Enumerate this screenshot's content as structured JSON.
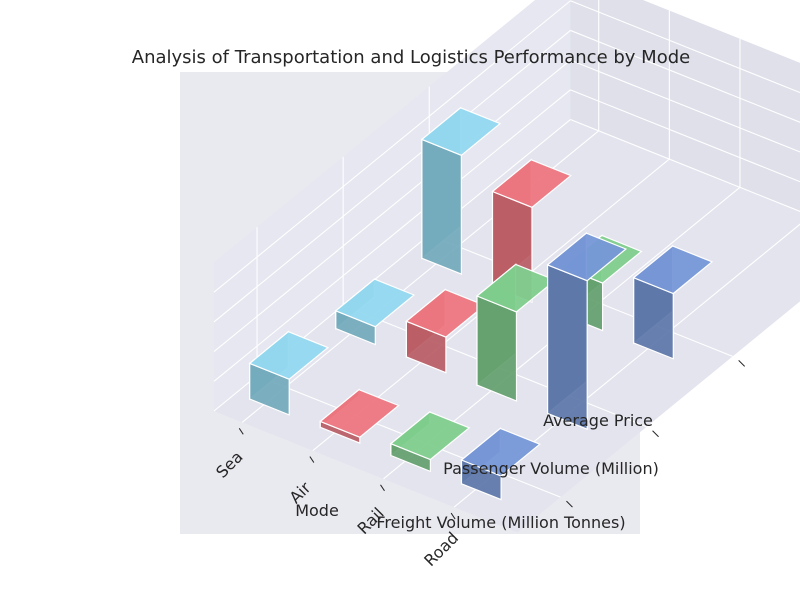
{
  "chart_data": {
    "type": "bar3d",
    "title": "Analysis of Transportation and Logistics Performance by Mode",
    "xlabel": "Mode",
    "ylabel": "",
    "zlabel": "",
    "x_categories": [
      "Sea",
      "Air",
      "Rail",
      "Road"
    ],
    "y_categories": [
      "Freight Volume (Million Tonnes)",
      "Passenger Volume (Million)",
      "Average Price"
    ],
    "z_ticks": [
      0,
      5,
      10,
      15,
      20
    ],
    "zlim": [
      0,
      25
    ],
    "grid": true,
    "series": [
      {
        "category": "Sea",
        "color": "#72a9bb",
        "values": [
          6,
          3,
          20
        ]
      },
      {
        "category": "Air",
        "color": "#b95c64",
        "values": [
          1,
          6,
          16
        ]
      },
      {
        "category": "Rail",
        "color": "#64a06e",
        "values": [
          2,
          15,
          8
        ]
      },
      {
        "category": "Road",
        "color": "#5c76a8",
        "values": [
          4,
          25,
          11
        ]
      }
    ]
  },
  "colors": {
    "pane": "#e5e6ef",
    "grid": "#ffffff",
    "edge": "#ffffff"
  }
}
